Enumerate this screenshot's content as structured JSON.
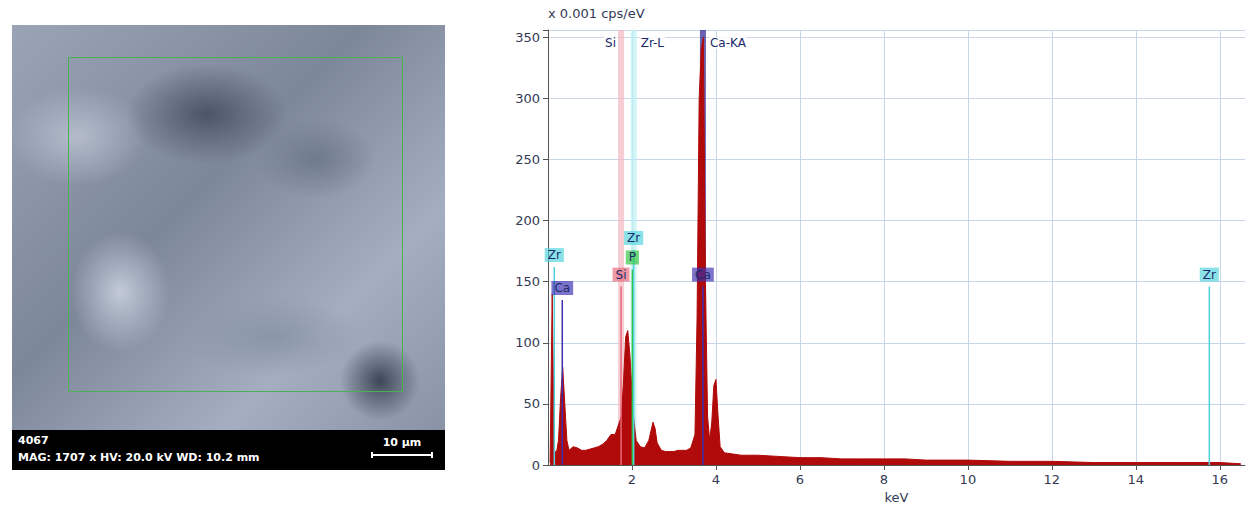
{
  "image_panel": {
    "sample_id": "4067",
    "info": "MAG: 1707 x HV: 20.0 kV WD: 10.2 mm",
    "scale_bar": "10 µm"
  },
  "chart_data": {
    "type": "line",
    "y_label": "x 0.001 cps/eV",
    "x_label": "keV",
    "color": "#b00a0a",
    "x": [
      0.05,
      0.1,
      0.15,
      0.2,
      0.25,
      0.3,
      0.35,
      0.4,
      0.45,
      0.5,
      0.6,
      0.7,
      0.8,
      0.9,
      1.0,
      1.1,
      1.2,
      1.3,
      1.4,
      1.5,
      1.6,
      1.7,
      1.75,
      1.8,
      1.85,
      1.9,
      1.95,
      2.0,
      2.05,
      2.1,
      2.2,
      2.3,
      2.4,
      2.5,
      2.55,
      2.6,
      2.7,
      2.8,
      2.9,
      3.0,
      3.1,
      3.2,
      3.3,
      3.4,
      3.5,
      3.55,
      3.6,
      3.65,
      3.7,
      3.75,
      3.8,
      3.85,
      3.9,
      3.95,
      4.0,
      4.05,
      4.1,
      4.2,
      4.4,
      4.6,
      5.0,
      5.5,
      6.0,
      6.5,
      7.0,
      7.5,
      8.0,
      8.5,
      9.0,
      9.5,
      10.0,
      11.0,
      12.0,
      13.0,
      14.0,
      15.0,
      16.0,
      16.5
    ],
    "values": [
      2,
      140,
      12,
      10,
      20,
      55,
      80,
      50,
      20,
      12,
      15,
      14,
      12,
      12,
      13,
      14,
      15,
      17,
      20,
      25,
      25,
      35,
      40,
      70,
      105,
      110,
      90,
      60,
      35,
      20,
      15,
      14,
      20,
      35,
      30,
      18,
      12,
      11,
      11,
      11,
      12,
      12,
      12,
      14,
      25,
      120,
      300,
      340,
      350,
      150,
      40,
      20,
      35,
      65,
      70,
      40,
      15,
      10,
      9,
      8,
      8,
      7,
      6,
      6,
      5,
      5,
      5,
      5,
      4,
      4,
      4,
      3,
      3,
      2,
      2,
      2,
      2,
      1
    ],
    "xlim": [
      0,
      16.6
    ],
    "xticks": [
      2,
      4,
      6,
      8,
      10,
      12,
      14,
      16
    ],
    "ylim": [
      0,
      356
    ],
    "yticks": [
      0,
      50,
      100,
      150,
      200,
      250,
      300,
      350
    ],
    "grid": true,
    "element_markers": [
      {
        "label": "Zr",
        "energy": 0.15,
        "height": 162,
        "color": "#4fd3dc"
      },
      {
        "label": "Ca",
        "energy": 0.34,
        "height": 135,
        "color": "#3b2fb0"
      },
      {
        "label": "Si",
        "energy": 1.74,
        "height": 146,
        "color": "#e8687a"
      },
      {
        "label": "P",
        "energy": 2.01,
        "height": 160,
        "color": "#2fc43a"
      },
      {
        "label": "Zr",
        "energy": 2.04,
        "height": 176,
        "color": "#4fd3dc"
      },
      {
        "label": "Ca",
        "energy": 3.69,
        "height": 146,
        "color": "#3b2fb0"
      },
      {
        "label": "Zr",
        "energy": 15.75,
        "height": 146,
        "color": "#4fd3dc"
      }
    ],
    "line_markers": [
      {
        "label": "Si",
        "energy": 1.74,
        "color": "#f2b8c0"
      },
      {
        "label": "Zr-L",
        "energy": 2.04,
        "color": "#bdeff2"
      },
      {
        "label": "Ca-KA",
        "energy": 3.69,
        "color": "#2b1f8f"
      }
    ]
  }
}
